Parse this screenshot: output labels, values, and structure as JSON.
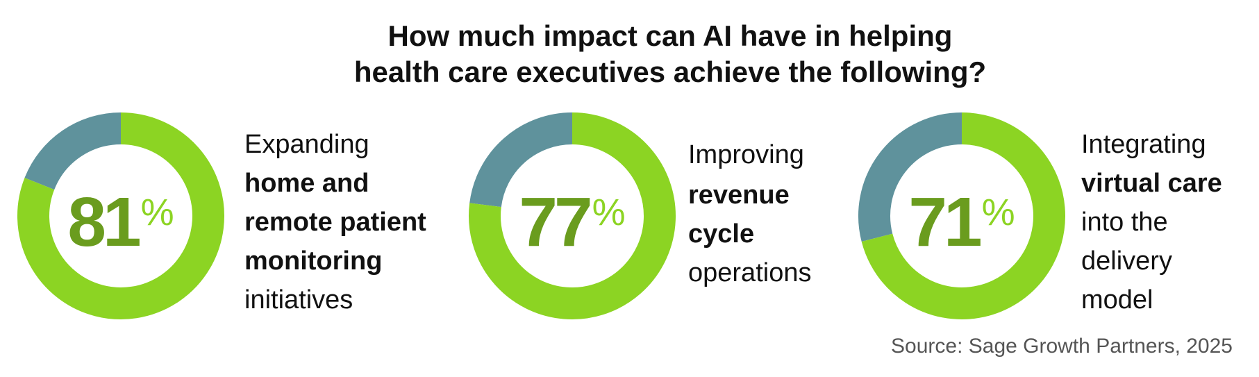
{
  "title_lines": [
    "How much impact can AI have in helping",
    "health care executives achieve the following?"
  ],
  "source": "Source: Sage Growth Partners, 2025",
  "chart_data": [
    {
      "type": "donut",
      "value": 81,
      "unit": "%",
      "ylim": [
        0,
        100
      ],
      "color": "#8cd423",
      "rest_color": "#5f929c",
      "number_color": "#6a9c1e",
      "lines": [
        {
          "text": "Expanding",
          "bold": false
        },
        {
          "text": "home and",
          "bold": true
        },
        {
          "text": "remote patient",
          "bold": true
        },
        {
          "text": "monitoring",
          "bold": true
        },
        {
          "text": "initiatives",
          "bold": false
        }
      ]
    },
    {
      "type": "donut",
      "value": 77,
      "unit": "%",
      "ylim": [
        0,
        100
      ],
      "color": "#8cd423",
      "rest_color": "#5f929c",
      "number_color": "#6a9c1e",
      "lines": [
        {
          "text": "Improving",
          "bold": false
        },
        {
          "text": "revenue",
          "bold": true
        },
        {
          "text": "cycle",
          "bold": true
        },
        {
          "text": "operations",
          "bold": false
        }
      ]
    },
    {
      "type": "donut",
      "value": 71,
      "unit": "%",
      "ylim": [
        0,
        100
      ],
      "color": "#8cd423",
      "rest_color": "#5f929c",
      "number_color": "#6a9c1e",
      "lines": [
        {
          "text": "Integrating",
          "bold": false
        },
        {
          "text": "virtual care",
          "bold": true
        },
        {
          "text": "into the",
          "bold": false
        },
        {
          "text": "delivery",
          "bold": false
        },
        {
          "text": "model",
          "bold": false
        }
      ]
    }
  ]
}
